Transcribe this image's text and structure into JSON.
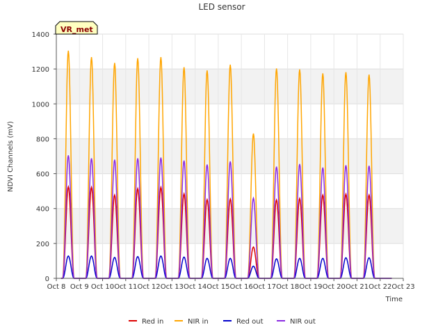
{
  "chart_data": {
    "type": "line",
    "title": "LED sensor",
    "xlabel": "Time",
    "ylabel": "NDVI Channels (mV)",
    "badge": "VR_met",
    "ylim": [
      0,
      1400
    ],
    "yticks": [
      0,
      200,
      400,
      600,
      800,
      1000,
      1200,
      1400
    ],
    "x_tick_labels": [
      "Oct 8",
      "Oct 9",
      "Oct 10",
      "Oct 11",
      "Oct 12",
      "Oct 13",
      "Oct 14",
      "Oct 15",
      "Oct 16",
      "Oct 17",
      "Oct 18",
      "Oct 19",
      "Oct 20",
      "Oct 21",
      "Oct 22",
      "Oct 23"
    ],
    "grid": true,
    "legend_position": "bottom",
    "days": [
      "Oct 8",
      "Oct 9",
      "Oct 10",
      "Oct 11",
      "Oct 12",
      "Oct 13",
      "Oct 14",
      "Oct 15",
      "Oct 16",
      "Oct 17",
      "Oct 18",
      "Oct 19",
      "Oct 20",
      "Oct 21"
    ],
    "series": [
      {
        "name": "Red in",
        "color": "#dd0000",
        "daily_peaks": [
          525,
          522,
          478,
          515,
          522,
          485,
          452,
          455,
          180,
          450,
          458,
          478,
          483,
          478
        ]
      },
      {
        "name": "NIR in",
        "color": "#ffa500",
        "daily_peaks": [
          1305,
          1268,
          1235,
          1262,
          1268,
          1210,
          1192,
          1225,
          830,
          1203,
          1198,
          1175,
          1182,
          1168
        ]
      },
      {
        "name": "Red out",
        "color": "#0000cc",
        "daily_peaks": [
          128,
          128,
          120,
          125,
          128,
          122,
          115,
          115,
          70,
          112,
          115,
          115,
          118,
          118
        ]
      },
      {
        "name": "NIR out",
        "color": "#8a2be2",
        "daily_peaks": [
          705,
          688,
          680,
          688,
          692,
          675,
          652,
          670,
          460,
          640,
          655,
          635,
          648,
          645
        ]
      }
    ]
  }
}
